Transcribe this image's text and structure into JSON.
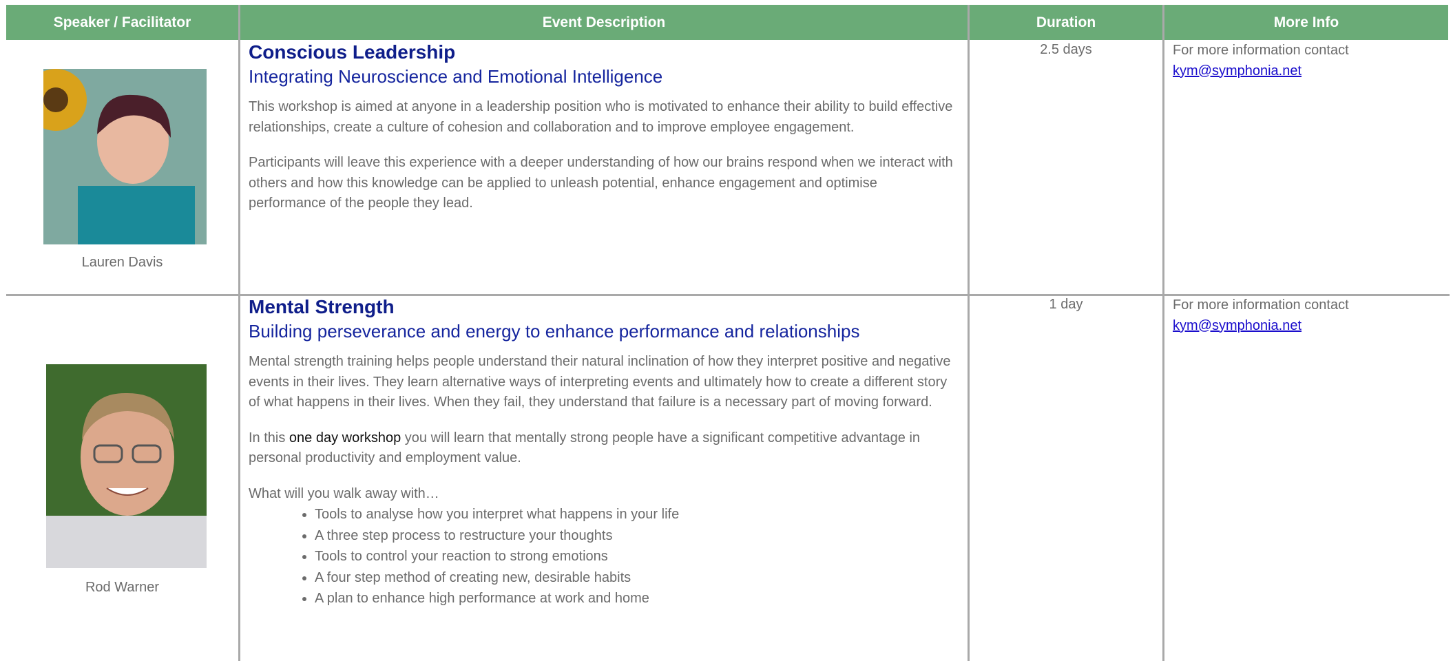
{
  "header": {
    "columns": [
      "Speaker / Facilitator",
      "Event Description",
      "Duration",
      "More Info"
    ]
  },
  "rows": [
    {
      "speaker": "Lauren Davis",
      "title": "Conscious Leadership",
      "subtitle": "Integrating Neuroscience and Emotional Intelligence",
      "paragraphs": [
        "This workshop is aimed at anyone in a leadership position who is motivated to enhance their ability to build effective relationships, create a culture of cohesion and collaboration and to improve employee engagement.",
        "Participants will leave this experience with a deeper understanding of how our brains respond when we interact with others and how this knowledge can be applied to unleash potential, enhance engagement and optimise performance of the people they lead."
      ],
      "duration": "2.5 days",
      "info": "For more information contact",
      "email": "kym@symphonia.net"
    },
    {
      "speaker": "Rod Warner",
      "title": "Mental Strength",
      "subtitle": "Building perseverance and energy to enhance performance and relationships",
      "paragraphs": [
        "Mental strength training helps people understand their natural inclination of how they interpret positive and negative events in their lives. They learn alternative ways of interpreting events and ultimately how to create a different story of what happens in their lives. When they fail, they understand that failure is a necessary part of moving forward."
      ],
      "emphasis": {
        "before": "In this ",
        "bold": "one day workshop",
        "after": " you will learn that mentally strong people have a significant competitive advantage in personal productivity and employment value."
      },
      "list_intro": "What will you walk away with…",
      "bullets": [
        "Tools to analyse how you interpret what happens in your life",
        "A three step process to restructure your thoughts",
        "Tools to control your reaction to strong emotions",
        "A four step method of creating new, desirable habits",
        "A plan to enhance high performance at work and home"
      ],
      "duration": "1 day",
      "info": "For more information contact",
      "email": "kym@symphonia.net"
    }
  ]
}
